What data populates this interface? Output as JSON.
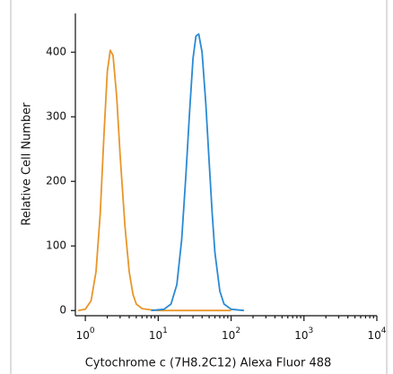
{
  "chart_data": {
    "type": "line",
    "xlabel": "Cytochrome c (7H8.2C12) Alexa Fluor 488",
    "ylabel": "Relative Cell Number",
    "xscale": "log",
    "xlim": [
      0.73,
      10000
    ],
    "ylim": [
      -8,
      460
    ],
    "xticks": [
      {
        "value": 1,
        "label": "10",
        "exponent": "0"
      },
      {
        "value": 10,
        "label": "10",
        "exponent": "1"
      },
      {
        "value": 100,
        "label": "10",
        "exponent": "2"
      },
      {
        "value": 1000,
        "label": "10",
        "exponent": "3"
      },
      {
        "value": 10000,
        "label": "10",
        "exponent": "4"
      }
    ],
    "yticks": [
      0,
      100,
      200,
      300,
      400
    ],
    "series": [
      {
        "color": "#e8962a",
        "x": [
          0.8,
          1.0,
          1.2,
          1.4,
          1.6,
          1.8,
          2.0,
          2.2,
          2.4,
          2.7,
          3.0,
          3.5,
          4.0,
          4.5,
          5.0,
          6.0,
          8,
          10,
          100
        ],
        "values": [
          0,
          2,
          15,
          60,
          150,
          270,
          370,
          403,
          395,
          330,
          240,
          130,
          60,
          25,
          10,
          3,
          1,
          0,
          0
        ]
      },
      {
        "color": "#2a8ad4",
        "x": [
          8,
          12,
          15,
          18,
          21,
          24,
          27,
          30,
          33,
          36,
          40,
          45,
          50,
          55,
          60,
          70,
          80,
          100,
          150
        ],
        "values": [
          0,
          2,
          10,
          40,
          110,
          210,
          310,
          390,
          425,
          428,
          400,
          320,
          230,
          150,
          90,
          30,
          10,
          2,
          0
        ]
      }
    ]
  }
}
